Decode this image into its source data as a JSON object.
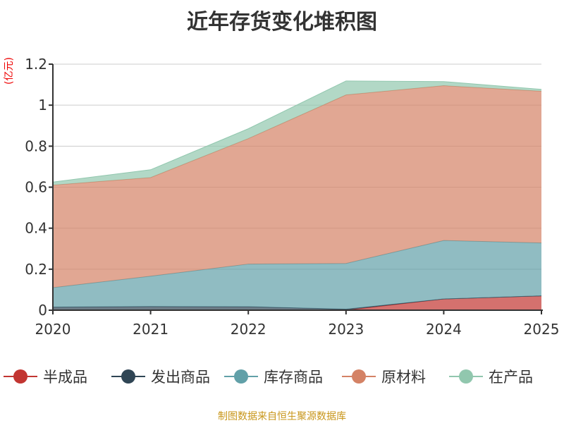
{
  "chart_data": {
    "type": "area",
    "stacked": true,
    "title": "近年存货变化堆积图",
    "ylabel": "(亿元)",
    "categories": [
      "2020",
      "2021",
      "2022",
      "2023",
      "2024",
      "2025"
    ],
    "ylim": [
      0,
      1.2
    ],
    "yticks": [
      "0",
      "0.2",
      "0.4",
      "0.6",
      "0.8",
      "1",
      "1.2"
    ],
    "grid": true,
    "legend_position": "bottom",
    "series": [
      {
        "name": "半成品",
        "color": "#c23531",
        "values": [
          0,
          0,
          0,
          0,
          0.055,
          0.07
        ]
      },
      {
        "name": "发出商品",
        "color": "#2f4554",
        "values": [
          0.015,
          0.018,
          0.017,
          0.005,
          0,
          0
        ]
      },
      {
        "name": "库存商品",
        "color": "#61a0a8",
        "values": [
          0.095,
          0.148,
          0.208,
          0.223,
          0.285,
          0.258
        ]
      },
      {
        "name": "原材料",
        "color": "#d48265",
        "values": [
          0.5,
          0.481,
          0.612,
          0.822,
          0.755,
          0.74
        ]
      },
      {
        "name": "在产品",
        "color": "#91c7ae",
        "values": [
          0.015,
          0.038,
          0.048,
          0.068,
          0.02,
          0.009
        ]
      }
    ]
  },
  "source": "制图数据来自恒生聚源数据库"
}
